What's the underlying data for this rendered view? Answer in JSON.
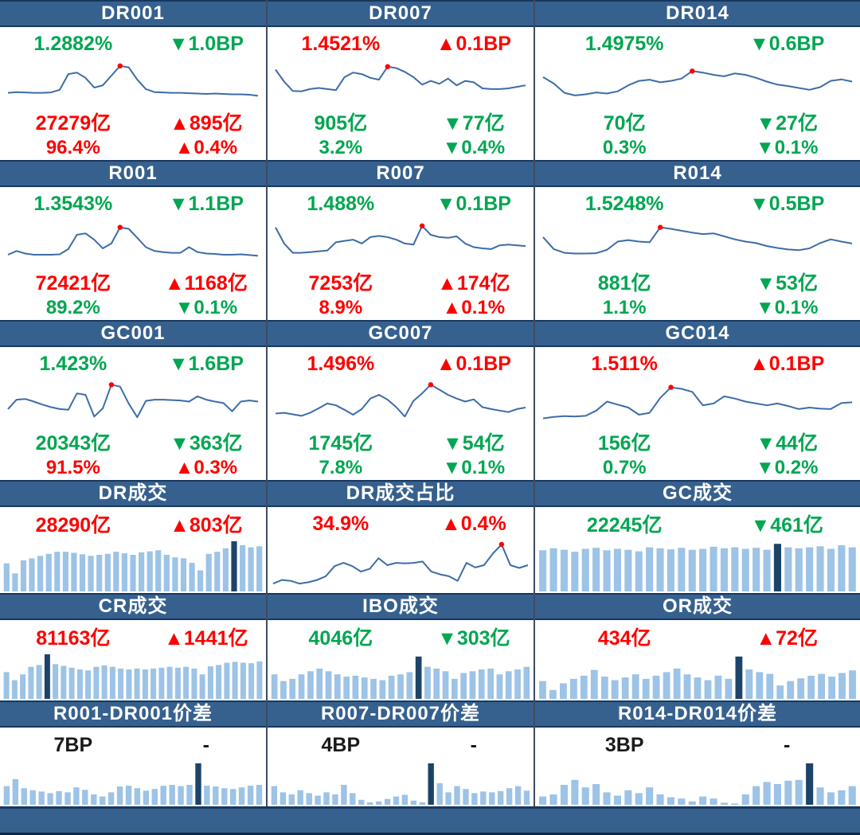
{
  "colors": {
    "green": "#00a651",
    "red": "#fe0000",
    "dark": "#1a1a1a",
    "line": "#3d6ca6",
    "dot": "#ff0000",
    "bar_light": "#9dc3e6",
    "bar_dark": "#1d4468",
    "header_bg": "#36618f",
    "header_text": "#ffffff",
    "divider": "#3f4b63",
    "border": "#17375e"
  },
  "chart_data": [
    {
      "type": "line",
      "title": "DR001",
      "scale": "normalized-0-100",
      "values": [
        20,
        22,
        21,
        20,
        20,
        21,
        28,
        70,
        74,
        60,
        34,
        40,
        66,
        92,
        88,
        55,
        30,
        22,
        21,
        20,
        20,
        19,
        18,
        17,
        18,
        17,
        16,
        16,
        15,
        12
      ],
      "dot_index": 13
    },
    {
      "type": "line",
      "title": "DR007",
      "scale": "normalized-0-100",
      "values": [
        82,
        50,
        25,
        24,
        30,
        33,
        30,
        27,
        62,
        74,
        70,
        60,
        55,
        90,
        86,
        76,
        62,
        42,
        52,
        44,
        58,
        40,
        52,
        48,
        32,
        30,
        30,
        32,
        36,
        40
      ],
      "dot_index": 13
    },
    {
      "type": "line",
      "title": "DR014",
      "scale": "normalized-0-100",
      "values": [
        62,
        45,
        20,
        13,
        16,
        21,
        18,
        24,
        40,
        52,
        55,
        48,
        52,
        58,
        78,
        74,
        68,
        64,
        72,
        68,
        60,
        50,
        42,
        38,
        33,
        28,
        35,
        52,
        56,
        50
      ],
      "dot_index": 14
    },
    {
      "type": "line",
      "title": "R001",
      "scale": "normalized-0-100",
      "values": [
        15,
        25,
        18,
        15,
        15,
        15,
        16,
        30,
        68,
        72,
        55,
        32,
        45,
        88,
        84,
        60,
        35,
        25,
        22,
        20,
        20,
        35,
        22,
        18,
        17,
        15,
        15,
        16,
        14,
        12
      ],
      "dot_index": 13
    },
    {
      "type": "line",
      "title": "R007",
      "scale": "normalized-0-100",
      "values": [
        88,
        45,
        20,
        20,
        22,
        24,
        26,
        48,
        52,
        55,
        45,
        62,
        65,
        62,
        55,
        45,
        42,
        92,
        68,
        62,
        60,
        64,
        45,
        35,
        32,
        30,
        40,
        42,
        40,
        38
      ],
      "dot_index": 17
    },
    {
      "type": "line",
      "title": "R014",
      "scale": "normalized-0-100",
      "values": [
        62,
        30,
        20,
        18,
        18,
        19,
        28,
        50,
        54,
        50,
        48,
        88,
        84,
        79,
        74,
        70,
        72,
        64,
        56,
        50,
        46,
        38,
        33,
        29,
        27,
        32,
        46,
        56,
        50,
        45
      ],
      "dot_index": 11
    },
    {
      "type": "line",
      "title": "GC001",
      "scale": "normalized-0-100",
      "values": [
        30,
        55,
        57,
        50,
        42,
        35,
        30,
        28,
        72,
        68,
        10,
        32,
        95,
        90,
        45,
        8,
        52,
        55,
        55,
        54,
        53,
        50,
        64,
        55,
        50,
        46,
        24,
        50,
        53,
        50
      ],
      "dot_index": 12
    },
    {
      "type": "line",
      "title": "GC007",
      "scale": "normalized-0-100",
      "values": [
        18,
        20,
        16,
        12,
        20,
        32,
        45,
        40,
        28,
        15,
        30,
        58,
        68,
        55,
        35,
        10,
        52,
        72,
        95,
        82,
        68,
        58,
        50,
        56,
        35,
        30,
        26,
        22,
        30,
        34
      ],
      "dot_index": 18
    },
    {
      "type": "line",
      "title": "GC014",
      "scale": "normalized-0-100",
      "values": [
        5,
        9,
        11,
        10,
        12,
        26,
        50,
        42,
        34,
        15,
        20,
        60,
        88,
        84,
        76,
        40,
        45,
        64,
        58,
        50,
        45,
        40,
        45,
        38,
        30,
        34,
        31,
        30,
        46,
        48
      ],
      "dot_index": 12
    },
    {
      "type": "bar",
      "title": "DR成交",
      "scale": "normalized-0-100",
      "values": [
        56,
        36,
        62,
        66,
        71,
        75,
        79,
        79,
        77,
        74,
        71,
        73,
        75,
        79,
        76,
        73,
        78,
        80,
        82,
        73,
        68,
        66,
        57,
        42,
        75,
        79,
        86,
        100,
        92,
        88,
        90
      ],
      "dark_index": 27
    },
    {
      "type": "line",
      "title": "DR成交占比",
      "scale": "normalized-0-100",
      "values": [
        10,
        18,
        16,
        10,
        13,
        18,
        26,
        48,
        55,
        48,
        36,
        42,
        65,
        50,
        55,
        54,
        55,
        58,
        36,
        30,
        26,
        16,
        55,
        45,
        50,
        75,
        95,
        50,
        44,
        50
      ],
      "dot_index": 26
    },
    {
      "type": "bar",
      "title": "GC成交",
      "scale": "normalized-0-100",
      "values": [
        82,
        86,
        83,
        79,
        85,
        87,
        82,
        85,
        83,
        80,
        88,
        86,
        84,
        87,
        83,
        85,
        89,
        86,
        88,
        85,
        87,
        83,
        95,
        88,
        86,
        88,
        90,
        85,
        92,
        88
      ],
      "dark_index": 22
    },
    {
      "type": "bar",
      "title": "CR成交",
      "scale": "normalized-0-100",
      "values": [
        60,
        42,
        55,
        72,
        76,
        100,
        78,
        74,
        70,
        66,
        64,
        72,
        75,
        72,
        68,
        66,
        68,
        66,
        68,
        70,
        72,
        70,
        72,
        68,
        55,
        73,
        76,
        81,
        83,
        81,
        80,
        84
      ],
      "dark_index": 5
    },
    {
      "type": "bar",
      "title": "IBO成交",
      "scale": "normalized-0-100",
      "values": [
        55,
        40,
        45,
        55,
        62,
        68,
        62,
        55,
        50,
        52,
        48,
        45,
        42,
        52,
        55,
        60,
        95,
        72,
        68,
        62,
        45,
        58,
        62,
        66,
        68,
        55,
        62,
        66,
        72
      ],
      "dark_index": 16
    },
    {
      "type": "bar",
      "title": "OR成交",
      "scale": "normalized-0-100",
      "values": [
        40,
        20,
        35,
        45,
        52,
        65,
        50,
        42,
        48,
        55,
        45,
        52,
        60,
        68,
        55,
        48,
        42,
        52,
        45,
        95,
        66,
        60,
        56,
        30,
        40,
        46,
        52,
        56,
        50,
        58,
        64
      ],
      "dark_index": 19
    },
    {
      "type": "bar",
      "title": "R001-DR001价差",
      "scale": "normalized-0-100",
      "values": [
        45,
        62,
        40,
        35,
        32,
        28,
        33,
        30,
        42,
        36,
        25,
        20,
        30,
        44,
        46,
        40,
        34,
        38,
        46,
        48,
        45,
        48,
        100,
        46,
        44,
        40,
        38,
        42,
        46,
        48
      ],
      "dark_index": 22
    },
    {
      "type": "bar",
      "title": "R007-DR007价差",
      "scale": "normalized-0-100",
      "values": [
        45,
        30,
        25,
        35,
        28,
        22,
        30,
        25,
        48,
        28,
        12,
        6,
        8,
        14,
        20,
        24,
        10,
        6,
        100,
        52,
        30,
        45,
        38,
        28,
        32,
        30,
        33,
        40,
        45,
        34
      ],
      "dark_index": 18
    },
    {
      "type": "bar",
      "title": "R014-DR014价差",
      "scale": "normalized-0-100",
      "values": [
        20,
        25,
        48,
        60,
        42,
        50,
        30,
        22,
        35,
        28,
        42,
        25,
        18,
        15,
        8,
        20,
        15,
        5,
        3,
        25,
        45,
        55,
        50,
        58,
        60,
        100,
        42,
        30,
        35,
        45
      ],
      "dark_index": 25
    }
  ],
  "panels": [
    {
      "type": "rate",
      "title": "DR001",
      "rate": "1.2882%",
      "rate_color": "green",
      "bp_change": "▼1.0BP",
      "bp_color": "green",
      "volume": "27279亿",
      "volume_color": "red",
      "volume_change": "▲895亿",
      "volume_change_color": "red",
      "share": "96.4%",
      "share_color": "red",
      "share_change": "▲0.4%",
      "share_change_color": "red",
      "chart_index": 0
    },
    {
      "type": "rate",
      "title": "DR007",
      "rate": "1.4521%",
      "rate_color": "red",
      "bp_change": "▲0.1BP",
      "bp_color": "red",
      "volume": "905亿",
      "volume_color": "green",
      "volume_change": "▼77亿",
      "volume_change_color": "green",
      "share": "3.2%",
      "share_color": "green",
      "share_change": "▼0.4%",
      "share_change_color": "green",
      "chart_index": 1
    },
    {
      "type": "rate",
      "title": "DR014",
      "rate": "1.4975%",
      "rate_color": "green",
      "bp_change": "▼0.6BP",
      "bp_color": "green",
      "volume": "70亿",
      "volume_color": "green",
      "volume_change": "▼27亿",
      "volume_change_color": "green",
      "share": "0.3%",
      "share_color": "green",
      "share_change": "▼0.1%",
      "share_change_color": "green",
      "chart_index": 2
    },
    {
      "type": "rate",
      "title": "R001",
      "rate": "1.3543%",
      "rate_color": "green",
      "bp_change": "▼1.1BP",
      "bp_color": "green",
      "volume": "72421亿",
      "volume_color": "red",
      "volume_change": "▲1168亿",
      "volume_change_color": "red",
      "share": "89.2%",
      "share_color": "green",
      "share_change": "▼0.1%",
      "share_change_color": "green",
      "chart_index": 3
    },
    {
      "type": "rate",
      "title": "R007",
      "rate": "1.488%",
      "rate_color": "green",
      "bp_change": "▼0.1BP",
      "bp_color": "green",
      "volume": "7253亿",
      "volume_color": "red",
      "volume_change": "▲174亿",
      "volume_change_color": "red",
      "share": "8.9%",
      "share_color": "red",
      "share_change": "▲0.1%",
      "share_change_color": "red",
      "chart_index": 4
    },
    {
      "type": "rate",
      "title": "R014",
      "rate": "1.5248%",
      "rate_color": "green",
      "bp_change": "▼0.5BP",
      "bp_color": "green",
      "volume": "881亿",
      "volume_color": "green",
      "volume_change": "▼53亿",
      "volume_change_color": "green",
      "share": "1.1%",
      "share_color": "green",
      "share_change": "▼0.1%",
      "share_change_color": "green",
      "chart_index": 5
    },
    {
      "type": "rate",
      "title": "GC001",
      "rate": "1.423%",
      "rate_color": "green",
      "bp_change": "▼1.6BP",
      "bp_color": "green",
      "volume": "20343亿",
      "volume_color": "green",
      "volume_change": "▼363亿",
      "volume_change_color": "green",
      "share": "91.5%",
      "share_color": "red",
      "share_change": "▲0.3%",
      "share_change_color": "red",
      "chart_index": 6
    },
    {
      "type": "rate",
      "title": "GC007",
      "rate": "1.496%",
      "rate_color": "red",
      "bp_change": "▲0.1BP",
      "bp_color": "red",
      "volume": "1745亿",
      "volume_color": "green",
      "volume_change": "▼54亿",
      "volume_change_color": "green",
      "share": "7.8%",
      "share_color": "green",
      "share_change": "▼0.1%",
      "share_change_color": "green",
      "chart_index": 7
    },
    {
      "type": "rate",
      "title": "GC014",
      "rate": "1.511%",
      "rate_color": "red",
      "bp_change": "▲0.1BP",
      "bp_color": "red",
      "volume": "156亿",
      "volume_color": "green",
      "volume_change": "▼44亿",
      "volume_change_color": "green",
      "share": "0.7%",
      "share_color": "green",
      "share_change": "▼0.2%",
      "share_change_color": "green",
      "chart_index": 8
    },
    {
      "type": "volume",
      "title": "DR成交",
      "value": "28290亿",
      "value_color": "red",
      "change": "▲803亿",
      "change_color": "red",
      "chart_index": 9
    },
    {
      "type": "volume",
      "title": "DR成交占比",
      "value": "34.9%",
      "value_color": "red",
      "change": "▲0.4%",
      "change_color": "red",
      "chart_index": 10
    },
    {
      "type": "volume",
      "title": "GC成交",
      "value": "22245亿",
      "value_color": "green",
      "change": "▼461亿",
      "change_color": "green",
      "chart_index": 11
    },
    {
      "type": "volume",
      "title": "CR成交",
      "value": "81163亿",
      "value_color": "red",
      "change": "▲1441亿",
      "change_color": "red",
      "chart_index": 12
    },
    {
      "type": "volume",
      "title": "IBO成交",
      "value": "4046亿",
      "value_color": "green",
      "change": "▼303亿",
      "change_color": "green",
      "chart_index": 13
    },
    {
      "type": "volume",
      "title": "OR成交",
      "value": "434亿",
      "value_color": "red",
      "change": "▲72亿",
      "change_color": "red",
      "chart_index": 14
    },
    {
      "type": "spread",
      "title": "R001-DR001价差",
      "value": "7BP",
      "value_color": "dark",
      "change": "-",
      "change_color": "dark",
      "chart_index": 15
    },
    {
      "type": "spread",
      "title": "R007-DR007价差",
      "value": "4BP",
      "value_color": "dark",
      "change": "-",
      "change_color": "dark",
      "chart_index": 16
    },
    {
      "type": "spread",
      "title": "R014-DR014价差",
      "value": "3BP",
      "value_color": "dark",
      "change": "-",
      "change_color": "dark",
      "chart_index": 17
    }
  ]
}
